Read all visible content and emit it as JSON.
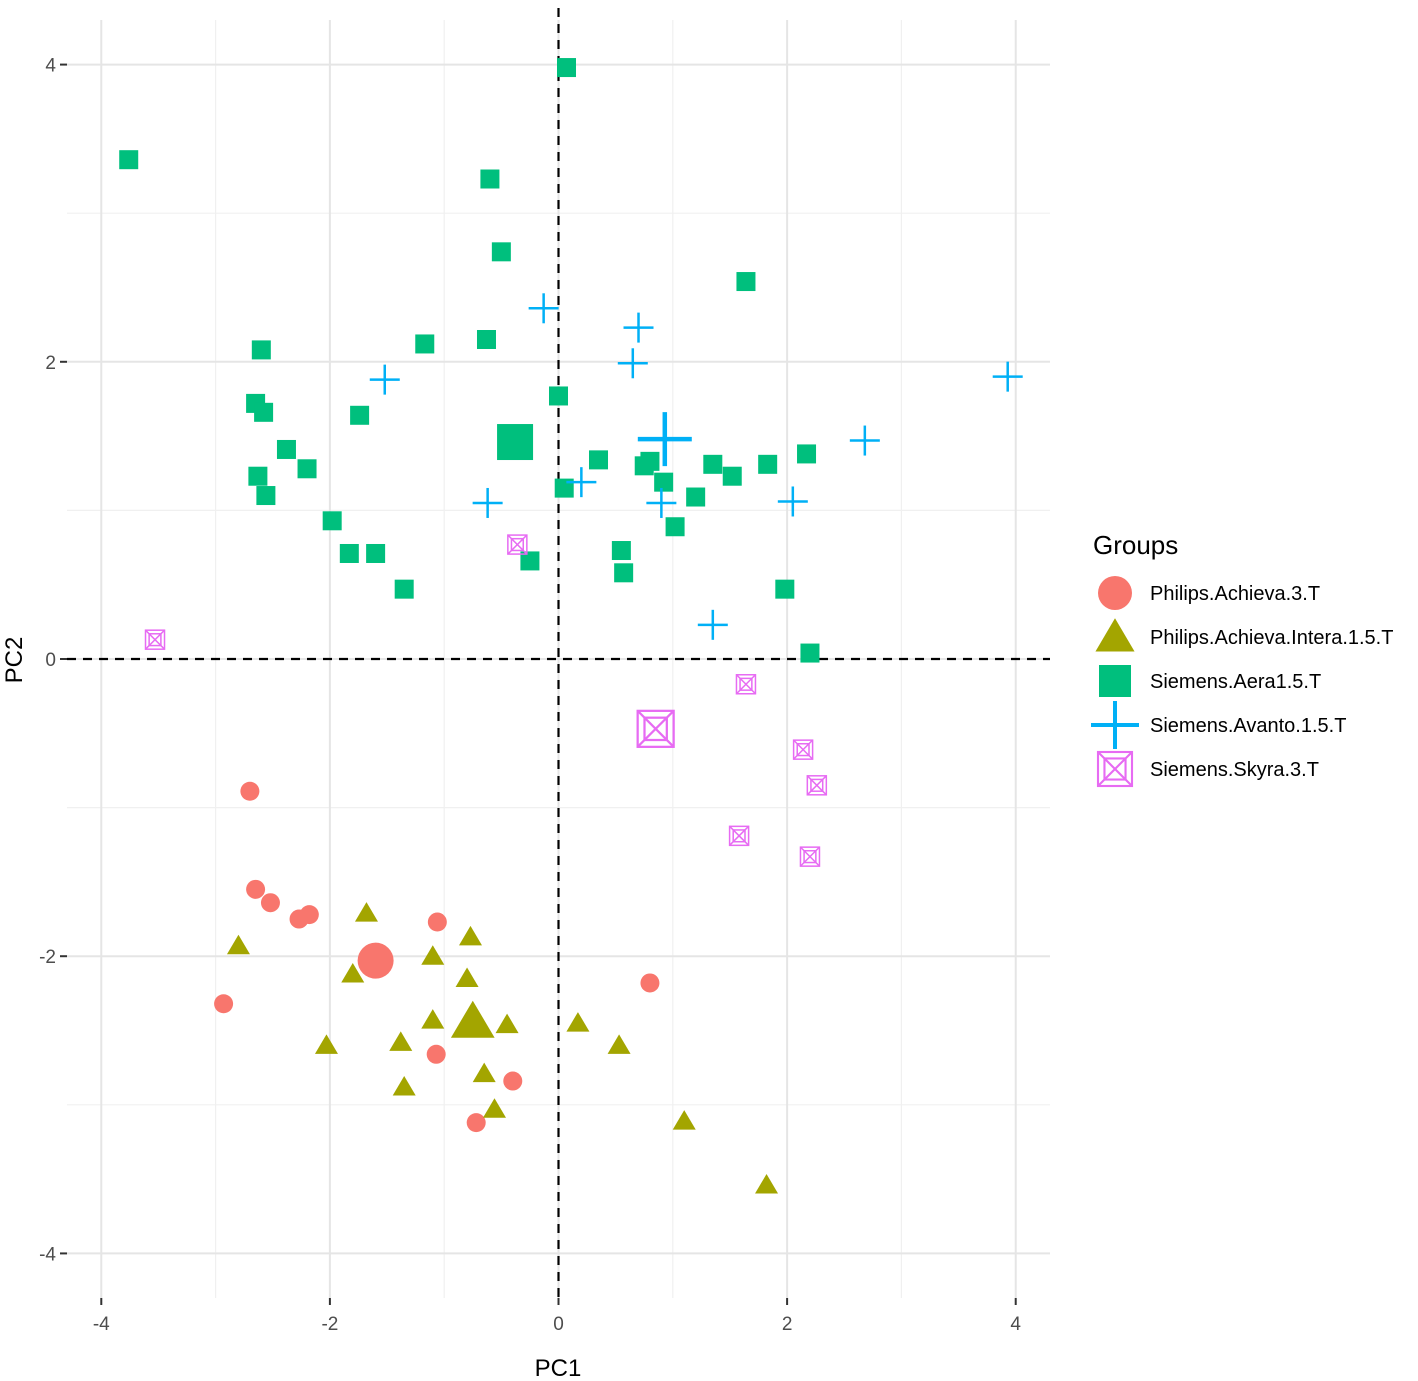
{
  "chart_data": {
    "type": "scatter",
    "title": "",
    "xlabel": "PC1",
    "ylabel": "PC2",
    "xlim": [
      -4.3,
      4.3
    ],
    "ylim": [
      -4.3,
      4.3
    ],
    "x_ticks": [
      -4,
      -2,
      0,
      2,
      4
    ],
    "y_ticks": [
      -4,
      -2,
      0,
      2,
      4
    ],
    "x_tick_labels": [
      "-4",
      "-2",
      "0",
      "2",
      "4"
    ],
    "y_tick_labels": [
      "-4",
      "-2",
      "0",
      "2",
      "4"
    ],
    "grid": true,
    "reference_lines": {
      "x": 0,
      "y": 0,
      "style": "dashed"
    },
    "legend": {
      "title": "Groups",
      "position": "right"
    },
    "series": [
      {
        "name": "Philips.Achieva.3.T",
        "shape": "circle",
        "color": "#F8766D",
        "points": [
          [
            -2.7,
            -0.89
          ],
          [
            -2.65,
            -1.55
          ],
          [
            -2.52,
            -1.64
          ],
          [
            -2.27,
            -1.75
          ],
          [
            -2.18,
            -1.72
          ],
          [
            -2.93,
            -2.32
          ],
          [
            -1.06,
            -1.77
          ],
          [
            -1.07,
            -2.66
          ],
          [
            -0.72,
            -3.12
          ],
          [
            -0.4,
            -2.84
          ],
          [
            0.8,
            -2.18
          ]
        ],
        "centroid": [
          -1.6,
          -2.03
        ]
      },
      {
        "name": "Philips.Achieva.Intera.1.5.T",
        "shape": "triangle",
        "color": "#A3A500",
        "points": [
          [
            -2.8,
            -1.93
          ],
          [
            -1.68,
            -1.71
          ],
          [
            -1.8,
            -2.12
          ],
          [
            -2.03,
            -2.6
          ],
          [
            -1.1,
            -2.0
          ],
          [
            -1.1,
            -2.43
          ],
          [
            -1.38,
            -2.58
          ],
          [
            -1.35,
            -2.88
          ],
          [
            -0.77,
            -1.87
          ],
          [
            -0.8,
            -2.15
          ],
          [
            -0.65,
            -2.79
          ],
          [
            -0.56,
            -3.03
          ],
          [
            -0.45,
            -2.46
          ],
          [
            0.17,
            -2.45
          ],
          [
            0.53,
            -2.6
          ],
          [
            1.1,
            -3.11
          ],
          [
            1.82,
            -3.54
          ]
        ],
        "centroid": [
          -0.75,
          -2.44
        ]
      },
      {
        "name": "Siemens.Aera1.5.T",
        "shape": "square",
        "color": "#00BF7D",
        "points": [
          [
            -3.76,
            3.36
          ],
          [
            0.07,
            3.98
          ],
          [
            -0.6,
            3.23
          ],
          [
            -0.5,
            2.74
          ],
          [
            1.64,
            2.54
          ],
          [
            -0.63,
            2.15
          ],
          [
            -1.17,
            2.12
          ],
          [
            -2.6,
            2.08
          ],
          [
            -2.65,
            1.72
          ],
          [
            -2.58,
            1.66
          ],
          [
            -1.74,
            1.64
          ],
          [
            -2.38,
            1.41
          ],
          [
            -2.63,
            1.23
          ],
          [
            -2.2,
            1.28
          ],
          [
            -2.56,
            1.1
          ],
          [
            -1.98,
            0.93
          ],
          [
            -1.83,
            0.71
          ],
          [
            -1.6,
            0.71
          ],
          [
            -1.35,
            0.47
          ],
          [
            -0.25,
            0.66
          ],
          [
            0.0,
            1.77
          ],
          [
            0.05,
            1.15
          ],
          [
            0.35,
            1.34
          ],
          [
            0.55,
            0.73
          ],
          [
            0.57,
            0.58
          ],
          [
            0.75,
            1.3
          ],
          [
            0.8,
            1.33
          ],
          [
            0.92,
            1.19
          ],
          [
            1.02,
            0.89
          ],
          [
            1.2,
            1.09
          ],
          [
            1.35,
            1.31
          ],
          [
            1.52,
            1.23
          ],
          [
            1.83,
            1.31
          ],
          [
            2.17,
            1.38
          ],
          [
            1.98,
            0.47
          ],
          [
            2.2,
            0.04
          ]
        ],
        "centroid": [
          -0.38,
          1.46
        ]
      },
      {
        "name": "Siemens.Avanto.1.5.T",
        "shape": "plus",
        "color": "#00B0F6",
        "points": [
          [
            -0.13,
            2.36
          ],
          [
            -1.52,
            1.88
          ],
          [
            0.7,
            2.23
          ],
          [
            0.65,
            1.99
          ],
          [
            -0.62,
            1.05
          ],
          [
            0.2,
            1.19
          ],
          [
            0.9,
            1.05
          ],
          [
            2.05,
            1.06
          ],
          [
            2.68,
            1.47
          ],
          [
            3.93,
            1.9
          ],
          [
            1.35,
            0.23
          ]
        ],
        "centroid": [
          0.93,
          1.48
        ]
      },
      {
        "name": "Siemens.Skyra.3.T",
        "shape": "square-cross",
        "color": "#E76BF3",
        "points": [
          [
            -3.53,
            0.13
          ],
          [
            -0.36,
            0.77
          ],
          [
            1.64,
            -0.17
          ],
          [
            2.14,
            -0.61
          ],
          [
            2.26,
            -0.85
          ],
          [
            1.58,
            -1.19
          ],
          [
            2.2,
            -1.33
          ]
        ],
        "centroid": [
          0.85,
          -0.47
        ]
      }
    ]
  }
}
